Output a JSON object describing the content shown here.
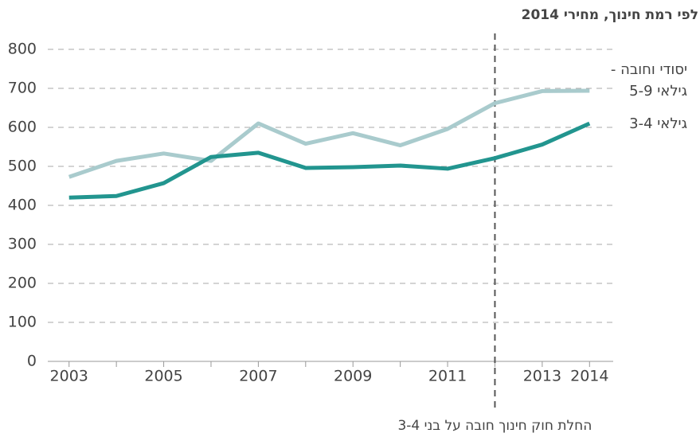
{
  "chart_data": {
    "type": "line",
    "title": "לפי רמת חינוך, מחירי 2014",
    "x": [
      2003,
      2004,
      2005,
      2006,
      2007,
      2008,
      2009,
      2010,
      2011,
      2012,
      2013,
      2014
    ],
    "series": [
      {
        "name": "יסודי וחובה - גילאי 5-9",
        "color": "#a9cbcd",
        "values": [
          473,
          514,
          533,
          514,
          610,
          558,
          585,
          554,
          596,
          662,
          693,
          694
        ]
      },
      {
        "name": "גילאי 3-4",
        "color": "#22958f",
        "values": [
          420,
          424,
          457,
          524,
          535,
          496,
          498,
          502,
          494,
          521,
          556,
          610
        ]
      }
    ],
    "xlim": [
      2002.55,
      2014.5
    ],
    "xticks": [
      2003,
      2005,
      2007,
      2009,
      2011,
      2013,
      2014
    ],
    "ylim": [
      0,
      800
    ],
    "yticks": [
      0,
      100,
      200,
      300,
      400,
      500,
      600,
      700,
      800
    ],
    "grid": true,
    "annotation": {
      "text": "החלת חוק חינוך חובה על בני 3-4",
      "x": 2012
    }
  }
}
